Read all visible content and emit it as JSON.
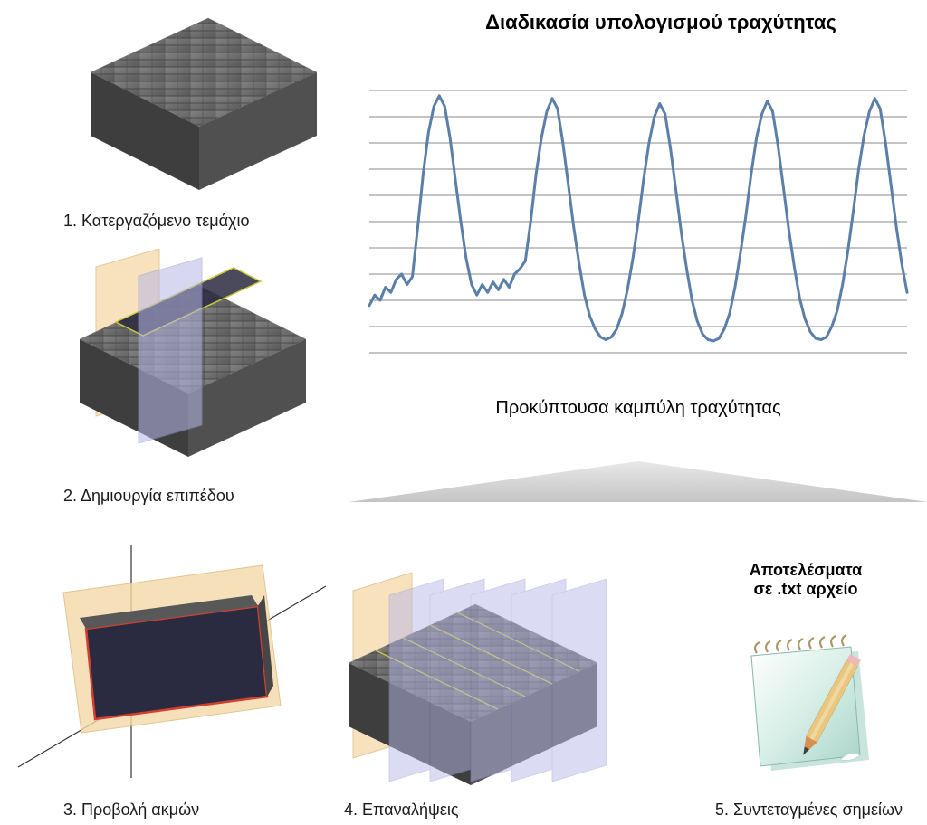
{
  "title": "Διαδικασία υπολογισμού τραχύτητας",
  "steps": {
    "s1": "1. Κατεργαζόμενο τεμάχιο",
    "s2": "2. Δημιουργία επιπέδου",
    "s3": "3. Προβολή ακμών",
    "s4": "4. Επαναλήψεις",
    "s5": "5. Συντεταγμένες σημείων"
  },
  "chart": {
    "caption": "Προκύπτουσα καμπύλη τραχύτητας",
    "grid_color": "#888888",
    "line_color": "#5b7fa8",
    "line_width": 3,
    "background": "#ffffff",
    "grid_lines": 11,
    "x_range": [
      0,
      100
    ],
    "y_range": [
      0,
      10
    ],
    "curve_points": [
      [
        0,
        1.8
      ],
      [
        1,
        2.2
      ],
      [
        2,
        2.0
      ],
      [
        3,
        2.5
      ],
      [
        4,
        2.3
      ],
      [
        5,
        2.8
      ],
      [
        6,
        3.0
      ],
      [
        7,
        2.6
      ],
      [
        8,
        2.9
      ],
      [
        9,
        4.8
      ],
      [
        10,
        6.8
      ],
      [
        11,
        8.4
      ],
      [
        12,
        9.4
      ],
      [
        13,
        9.8
      ],
      [
        14,
        9.4
      ],
      [
        15,
        8.2
      ],
      [
        16,
        6.6
      ],
      [
        17,
        5.0
      ],
      [
        18,
        3.6
      ],
      [
        19,
        2.6
      ],
      [
        20,
        2.2
      ],
      [
        21,
        2.6
      ],
      [
        22,
        2.3
      ],
      [
        23,
        2.7
      ],
      [
        24,
        2.4
      ],
      [
        25,
        2.8
      ],
      [
        26,
        2.5
      ],
      [
        27,
        3.0
      ],
      [
        28,
        3.2
      ],
      [
        29,
        3.5
      ],
      [
        30,
        5.0
      ],
      [
        31,
        6.8
      ],
      [
        32,
        8.2
      ],
      [
        33,
        9.2
      ],
      [
        34,
        9.7
      ],
      [
        35,
        9.3
      ],
      [
        36,
        8.0
      ],
      [
        37,
        6.4
      ],
      [
        38,
        4.8
      ],
      [
        39,
        3.4
      ],
      [
        40,
        2.2
      ],
      [
        41,
        1.4
      ],
      [
        42,
        0.9
      ],
      [
        43,
        0.6
      ],
      [
        44,
        0.5
      ],
      [
        45,
        0.6
      ],
      [
        46,
        0.9
      ],
      [
        47,
        1.5
      ],
      [
        48,
        2.4
      ],
      [
        49,
        3.6
      ],
      [
        50,
        5.0
      ],
      [
        51,
        6.6
      ],
      [
        52,
        8.0
      ],
      [
        53,
        9.0
      ],
      [
        54,
        9.5
      ],
      [
        55,
        9.1
      ],
      [
        56,
        7.8
      ],
      [
        57,
        6.2
      ],
      [
        58,
        4.6
      ],
      [
        59,
        3.2
      ],
      [
        60,
        2.0
      ],
      [
        61,
        1.2
      ],
      [
        62,
        0.7
      ],
      [
        63,
        0.5
      ],
      [
        64,
        0.45
      ],
      [
        65,
        0.55
      ],
      [
        66,
        0.9
      ],
      [
        67,
        1.5
      ],
      [
        68,
        2.5
      ],
      [
        69,
        3.8
      ],
      [
        70,
        5.2
      ],
      [
        71,
        6.8
      ],
      [
        72,
        8.2
      ],
      [
        73,
        9.1
      ],
      [
        74,
        9.6
      ],
      [
        75,
        9.2
      ],
      [
        76,
        7.9
      ],
      [
        77,
        6.3
      ],
      [
        78,
        4.7
      ],
      [
        79,
        3.3
      ],
      [
        80,
        2.1
      ],
      [
        81,
        1.3
      ],
      [
        82,
        0.8
      ],
      [
        83,
        0.55
      ],
      [
        84,
        0.5
      ],
      [
        85,
        0.6
      ],
      [
        86,
        1.0
      ],
      [
        87,
        1.6
      ],
      [
        88,
        2.6
      ],
      [
        89,
        3.9
      ],
      [
        90,
        5.4
      ],
      [
        91,
        7.0
      ],
      [
        92,
        8.3
      ],
      [
        93,
        9.2
      ],
      [
        94,
        9.7
      ],
      [
        95,
        9.3
      ],
      [
        96,
        8.0
      ],
      [
        97,
        6.4
      ],
      [
        98,
        4.8
      ],
      [
        99,
        3.4
      ],
      [
        100,
        2.3
      ]
    ]
  },
  "results_label": "Αποτελέσματα\nσε .txt αρχείο",
  "colors": {
    "block_top": "#6a6a6a",
    "block_side_dark": "#3e3e3e",
    "block_side_mid": "#505050",
    "plane_beige": "#f5d9a8",
    "plane_blue": "#b8b8e8",
    "outline_yellow": "#c9c93a",
    "outline_red": "#d04030",
    "segment_dark": "#2a2a40",
    "triangle_fill": "#d9d9d9",
    "notepad_paper": "#e8f4f0",
    "notepad_shadow": "#a8ccc4",
    "notepad_spiral": "#b8a878",
    "pencil_wood": "#e8c880",
    "pencil_tip": "#d89050"
  },
  "layout": {
    "block_width": 270,
    "block_height": 210,
    "step_fontsize": 18,
    "title_fontsize": 22
  }
}
